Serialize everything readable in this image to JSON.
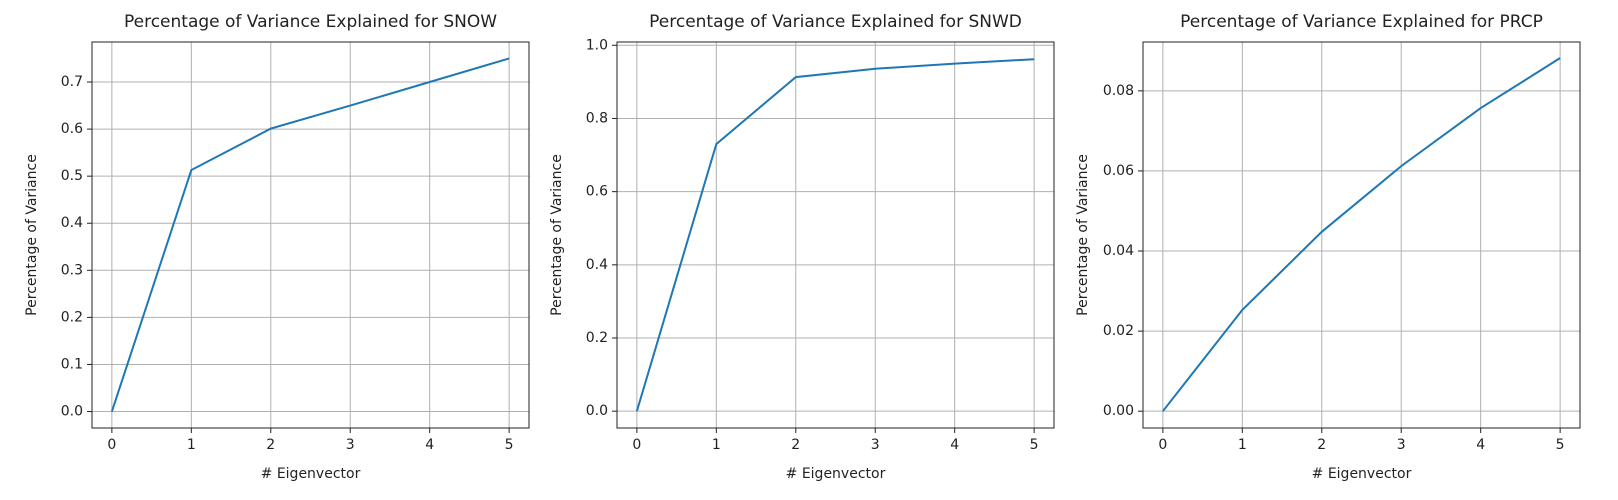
{
  "chart_data": [
    {
      "type": "line",
      "title": "Percentage of Variance Explained for SNOW",
      "x_label": "# Eigenvector",
      "y_label": "Percentage of Variance",
      "x": [
        0,
        1,
        2,
        3,
        4,
        5
      ],
      "series": [
        {
          "name": "SNOW",
          "color": "#1f77b4",
          "values": [
            0,
            0.513,
            0.601,
            0.65,
            0.7,
            0.75
          ]
        }
      ],
      "xlim": [
        -0.25,
        5.25
      ],
      "xticks": [
        0,
        1,
        2,
        3,
        4,
        5
      ],
      "ylim": [
        -0.035,
        0.785
      ],
      "yticks": [
        {
          "value": 0,
          "label": "0.0"
        },
        0.1,
        0.2,
        0.3,
        0.4,
        0.5,
        0.6,
        0.7
      ],
      "grid": true
    },
    {
      "type": "line",
      "title": "Percentage of Variance Explained for SNWD",
      "x_label": "# Eigenvector",
      "y_label": "Percentage of Variance",
      "x": [
        0,
        1,
        2,
        3,
        4,
        5
      ],
      "series": [
        {
          "name": "SNWD",
          "color": "#1f77b4",
          "values": [
            0,
            0.73,
            0.913,
            0.936,
            0.95,
            0.962
          ]
        }
      ],
      "xlim": [
        -0.25,
        5.25
      ],
      "xticks": [
        0,
        1,
        2,
        3,
        4,
        5
      ],
      "ylim": [
        -0.046,
        1.009
      ],
      "yticks": [
        {
          "value": 0,
          "label": "0.0"
        },
        0.2,
        0.4,
        0.6,
        0.8,
        {
          "value": 1,
          "label": "1.0"
        }
      ],
      "grid": true
    },
    {
      "type": "line",
      "title": "Percentage of Variance Explained for PRCP",
      "x_label": "# Eigenvector",
      "y_label": "Percentage of Variance",
      "x": [
        0,
        1,
        2,
        3,
        4,
        5
      ],
      "series": [
        {
          "name": "PRCP",
          "color": "#1f77b4",
          "values": [
            0,
            0.0253,
            0.0448,
            0.0612,
            0.0757,
            0.0882
          ]
        }
      ],
      "xlim": [
        -0.25,
        5.25
      ],
      "xticks": [
        0,
        1,
        2,
        3,
        4,
        5
      ],
      "ylim": [
        -0.0042,
        0.0922
      ],
      "yticks": [
        {
          "value": 0,
          "label": "0.00"
        },
        {
          "value": 0.02,
          "label": "0.02"
        },
        {
          "value": 0.04,
          "label": "0.04"
        },
        {
          "value": 0.06,
          "label": "0.06"
        },
        {
          "value": 0.08,
          "label": "0.08"
        }
      ],
      "grid": true
    }
  ]
}
